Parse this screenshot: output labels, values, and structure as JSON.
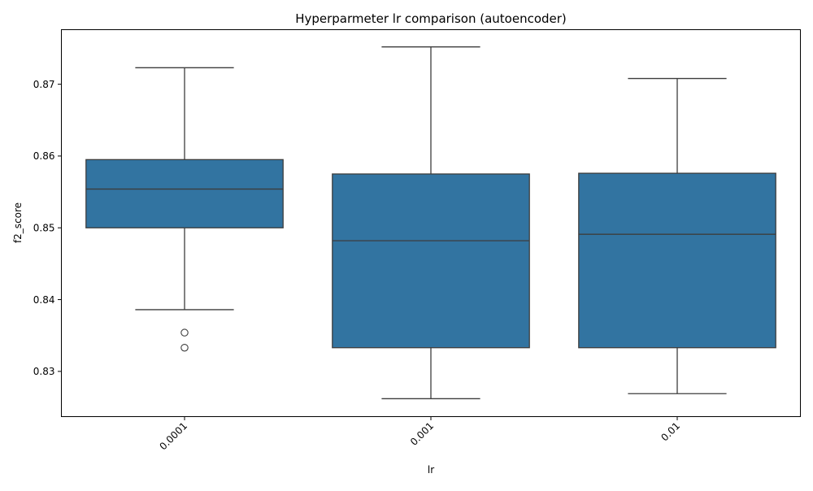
{
  "chart_data": {
    "type": "box",
    "title": "Hyperparmeter lr comparison (autoencoder)",
    "xlabel": "lr",
    "ylabel": "f2_score",
    "categories": [
      "0.0001",
      "0.001",
      "0.01"
    ],
    "ylim": [
      0.8237,
      0.8776
    ],
    "yticks": [
      0.83,
      0.84,
      0.85,
      0.86,
      0.87
    ],
    "ytick_labels": [
      "0.83",
      "0.84",
      "0.85",
      "0.86",
      "0.87"
    ],
    "box_color": "#3274a1",
    "edge_color": "#3d3d3d",
    "grid": false,
    "boxes": [
      {
        "category": "0.0001",
        "whisker_low": 0.8386,
        "q1": 0.85,
        "median": 0.8554,
        "q3": 0.8595,
        "whisker_high": 0.8723,
        "outliers": [
          0.8354,
          0.8333
        ]
      },
      {
        "category": "0.001",
        "whisker_low": 0.8262,
        "q1": 0.8333,
        "median": 0.8482,
        "q3": 0.8575,
        "whisker_high": 0.8752,
        "outliers": []
      },
      {
        "category": "0.01",
        "whisker_low": 0.8269,
        "q1": 0.8333,
        "median": 0.8491,
        "q3": 0.8576,
        "whisker_high": 0.8708,
        "outliers": []
      }
    ]
  }
}
